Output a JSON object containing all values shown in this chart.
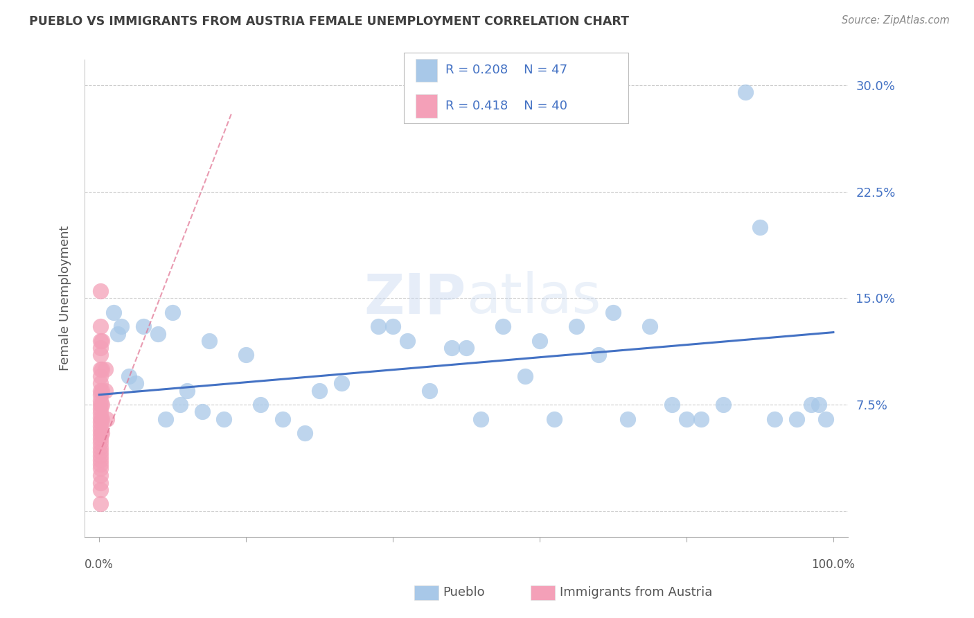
{
  "title": "PUEBLO VS IMMIGRANTS FROM AUSTRIA FEMALE UNEMPLOYMENT CORRELATION CHART",
  "source": "Source: ZipAtlas.com",
  "ylabel": "Female Unemployment",
  "watermark": "ZIPatlas",
  "legend_r1": "R = 0.208",
  "legend_n1": "N = 47",
  "legend_r2": "R = 0.418",
  "legend_n2": "N = 40",
  "blue_scatter_color": "#a8c8e8",
  "pink_scatter_color": "#f4a0b8",
  "blue_line_color": "#4472c4",
  "pink_line_color": "#e07090",
  "title_color": "#404040",
  "axis_label_color": "#555555",
  "yaxis_tick_color": "#4472c4",
  "legend_text_color": "#4472c4",
  "ytick_values": [
    0.0,
    0.075,
    0.15,
    0.225,
    0.3
  ],
  "ytick_labels": [
    "",
    "7.5%",
    "15.0%",
    "22.5%",
    "30.0%"
  ],
  "xlim": [
    -0.02,
    1.02
  ],
  "ylim": [
    -0.018,
    0.318
  ],
  "pueblo_x": [
    0.02,
    0.025,
    0.03,
    0.04,
    0.05,
    0.06,
    0.08,
    0.09,
    0.1,
    0.11,
    0.12,
    0.14,
    0.15,
    0.17,
    0.2,
    0.22,
    0.25,
    0.28,
    0.3,
    0.33,
    0.38,
    0.4,
    0.42,
    0.45,
    0.48,
    0.5,
    0.52,
    0.55,
    0.58,
    0.6,
    0.62,
    0.65,
    0.68,
    0.7,
    0.72,
    0.75,
    0.78,
    0.8,
    0.82,
    0.85,
    0.88,
    0.9,
    0.92,
    0.95,
    0.97,
    0.98,
    0.99
  ],
  "pueblo_y": [
    0.14,
    0.125,
    0.13,
    0.095,
    0.09,
    0.13,
    0.125,
    0.065,
    0.14,
    0.075,
    0.085,
    0.07,
    0.12,
    0.065,
    0.11,
    0.075,
    0.065,
    0.055,
    0.085,
    0.09,
    0.13,
    0.13,
    0.12,
    0.085,
    0.115,
    0.115,
    0.065,
    0.13,
    0.095,
    0.12,
    0.065,
    0.13,
    0.11,
    0.14,
    0.065,
    0.13,
    0.075,
    0.065,
    0.065,
    0.075,
    0.295,
    0.2,
    0.065,
    0.065,
    0.075,
    0.075,
    0.065
  ],
  "austria_x": [
    0.002,
    0.002,
    0.002,
    0.002,
    0.002,
    0.002,
    0.002,
    0.002,
    0.002,
    0.002,
    0.002,
    0.002,
    0.002,
    0.002,
    0.002,
    0.002,
    0.002,
    0.002,
    0.002,
    0.002,
    0.002,
    0.002,
    0.002,
    0.002,
    0.002,
    0.002,
    0.002,
    0.002,
    0.002,
    0.002,
    0.002,
    0.004,
    0.004,
    0.004,
    0.004,
    0.004,
    0.004,
    0.008,
    0.008,
    0.01
  ],
  "austria_y": [
    0.155,
    0.13,
    0.12,
    0.115,
    0.11,
    0.1,
    0.095,
    0.09,
    0.085,
    0.082,
    0.078,
    0.075,
    0.072,
    0.069,
    0.066,
    0.063,
    0.06,
    0.057,
    0.054,
    0.051,
    0.048,
    0.045,
    0.042,
    0.039,
    0.036,
    0.033,
    0.03,
    0.025,
    0.02,
    0.015,
    0.005,
    0.12,
    0.1,
    0.085,
    0.075,
    0.065,
    0.055,
    0.1,
    0.085,
    0.065
  ],
  "blue_trendline_x": [
    0.0,
    1.0
  ],
  "blue_trendline_y": [
    0.082,
    0.126
  ],
  "pink_trendline_x": [
    0.0,
    0.18
  ],
  "pink_trendline_y": [
    0.04,
    0.28
  ]
}
